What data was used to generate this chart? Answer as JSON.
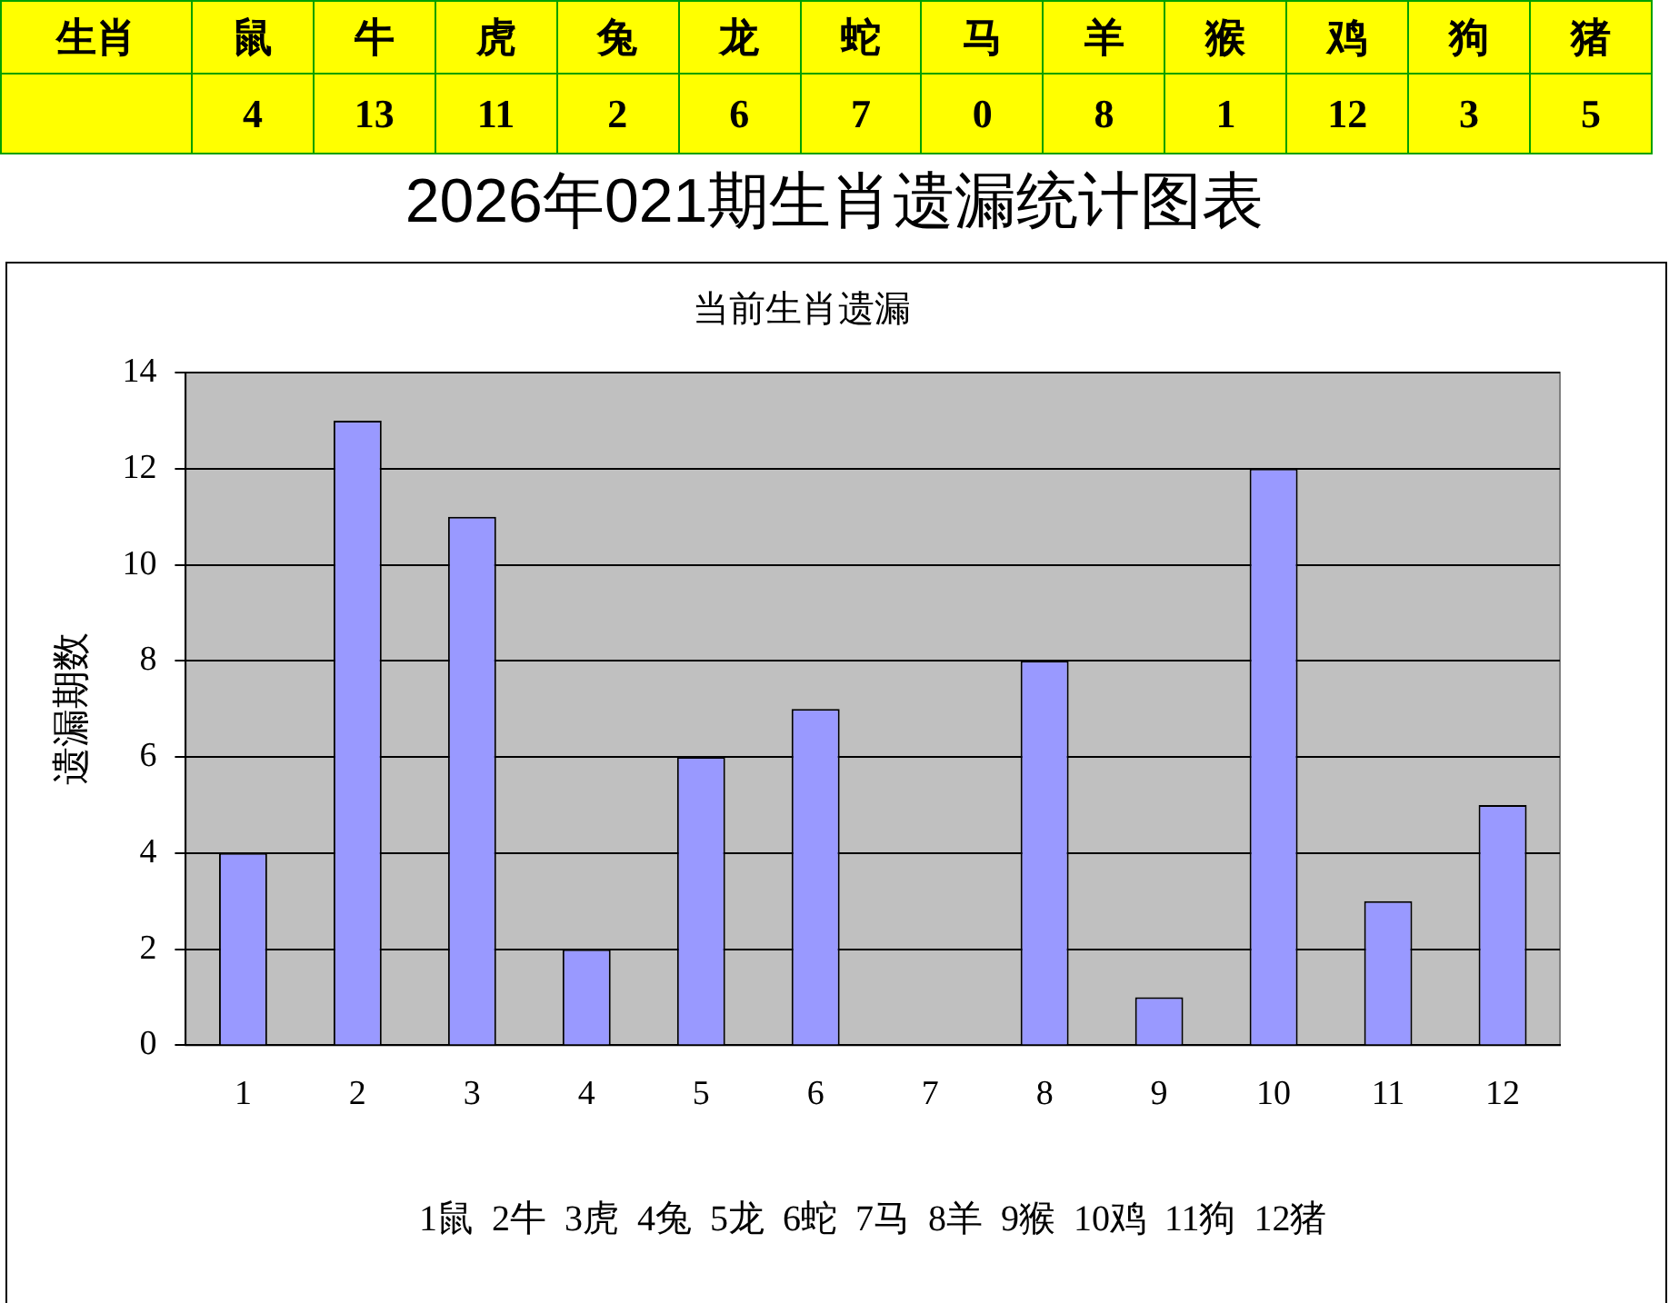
{
  "chart_data": [
    {
      "type": "other",
      "annotations": [
        "生肖"
      ],
      "categories": [
        "鼠",
        "牛",
        "虎",
        "兔",
        "龙",
        "蛇",
        "马",
        "羊",
        "猴",
        "鸡",
        "狗",
        "猪"
      ],
      "values": [
        4,
        13,
        11,
        2,
        6,
        7,
        0,
        8,
        1,
        12,
        3,
        5
      ],
      "data_labels": true
    },
    {
      "type": "bar",
      "title": "2026年021期生肖遗漏统计图表",
      "subtitle": "当前生肖遗漏",
      "ylabel": "遗漏期数",
      "categories": [
        "1",
        "2",
        "3",
        "4",
        "5",
        "6",
        "7",
        "8",
        "9",
        "10",
        "11",
        "12"
      ],
      "values": [
        4,
        13,
        11,
        2,
        6,
        7,
        0,
        8,
        1,
        12,
        3,
        5
      ],
      "color": "#9999ff",
      "ylim": [
        0,
        14
      ],
      "yticks": [
        0,
        2,
        4,
        6,
        8,
        10,
        12,
        14
      ],
      "grid": "y",
      "legend": false,
      "annotations": [
        "1鼠  2牛  3虎  4兔  5龙  6蛇  7马  8羊  9猴  10鸡  11狗  12猪"
      ]
    }
  ]
}
